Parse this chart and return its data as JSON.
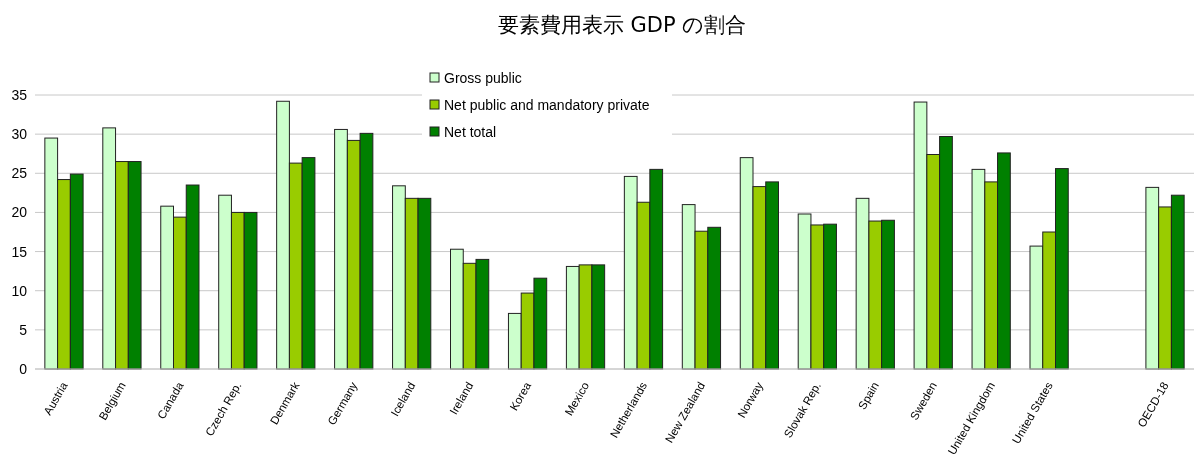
{
  "chart_data": {
    "type": "bar",
    "title": "要素費用表示 GDP の割合",
    "categories": [
      "Austria",
      "Belgium",
      "Canada",
      "Czech Rep.",
      "Denmark",
      "Germany",
      "Iceland",
      "Ireland",
      "Korea",
      "Mexico",
      "Netherlands",
      "New Zealand",
      "Norway",
      "Slovak Rep.",
      "Spain",
      "Sweden",
      "United Kingdom",
      "United States",
      null,
      "OECD-18"
    ],
    "series": [
      {
        "name": "Gross public",
        "color": "#ccffcc",
        "values": [
          29.5,
          30.8,
          20.8,
          22.2,
          34.2,
          30.6,
          23.4,
          15.3,
          7.1,
          13.1,
          24.6,
          21.0,
          27.0,
          19.8,
          21.8,
          34.1,
          25.5,
          15.7,
          null,
          23.2
        ]
      },
      {
        "name": "Net public and mandatory private",
        "color": "#99cc00",
        "values": [
          24.2,
          26.5,
          19.4,
          20.0,
          26.3,
          29.2,
          21.8,
          13.5,
          9.7,
          13.3,
          21.3,
          17.6,
          23.3,
          18.4,
          18.9,
          27.4,
          23.9,
          17.5,
          null,
          20.7
        ]
      },
      {
        "name": "Net total",
        "color": "#008000",
        "values": [
          24.9,
          26.5,
          23.5,
          20.0,
          27.0,
          30.1,
          21.8,
          14.0,
          11.6,
          13.3,
          25.5,
          18.1,
          23.9,
          18.5,
          19.0,
          29.7,
          27.6,
          25.6,
          null,
          22.2
        ]
      }
    ],
    "ylim": [
      0,
      35
    ],
    "yticks": [
      0,
      5,
      10,
      15,
      20,
      25,
      30,
      35
    ],
    "grid": "y",
    "legend": "top"
  }
}
